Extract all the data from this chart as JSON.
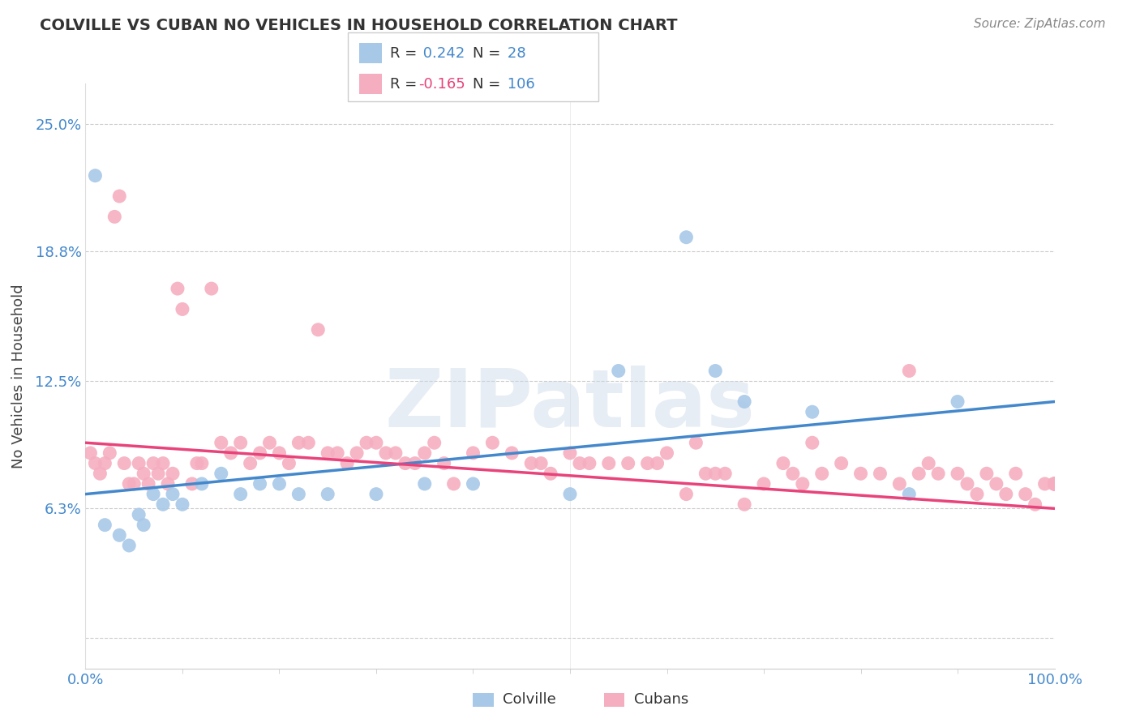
{
  "title": "COLVILLE VS CUBAN NO VEHICLES IN HOUSEHOLD CORRELATION CHART",
  "source": "Source: ZipAtlas.com",
  "ylabel": "No Vehicles in Household",
  "xlim": [
    0,
    100
  ],
  "ylim": [
    -1.5,
    27
  ],
  "ytick_positions": [
    0,
    6.3,
    12.5,
    18.8,
    25.0
  ],
  "ytick_labels": [
    "",
    "6.3%",
    "12.5%",
    "18.8%",
    "25.0%"
  ],
  "xtick_positions": [
    0,
    100
  ],
  "xtick_labels": [
    "0.0%",
    "100.0%"
  ],
  "colville_R": 0.242,
  "colville_N": 28,
  "cuban_R": -0.165,
  "cuban_N": 106,
  "colville_color": "#a8c8e8",
  "cuban_color": "#f5aec0",
  "colville_line_color": "#4488cc",
  "cuban_line_color": "#e8437a",
  "background_color": "#ffffff",
  "watermark": "ZIPatlas",
  "title_color": "#333333",
  "source_color": "#888888",
  "label_color": "#444444",
  "tick_color": "#4488cc",
  "grid_color": "#cccccc",
  "legend_edge_color": "#cccccc",
  "colville_x": [
    1.0,
    2.0,
    3.5,
    4.5,
    5.5,
    6.0,
    7.0,
    8.0,
    9.0,
    10.0,
    12.0,
    14.0,
    16.0,
    18.0,
    20.0,
    22.0,
    25.0,
    30.0,
    35.0,
    40.0,
    50.0,
    55.0,
    62.0,
    65.0,
    68.0,
    75.0,
    85.0,
    90.0
  ],
  "colville_y": [
    22.5,
    5.5,
    5.0,
    4.5,
    6.0,
    5.5,
    7.0,
    6.5,
    7.0,
    6.5,
    7.5,
    8.0,
    7.0,
    7.5,
    7.5,
    7.0,
    7.0,
    7.0,
    7.5,
    7.5,
    7.0,
    13.0,
    19.5,
    13.0,
    11.5,
    11.0,
    7.0,
    11.5
  ],
  "cuban_x": [
    0.5,
    1.0,
    1.5,
    2.0,
    2.5,
    3.0,
    3.5,
    4.0,
    4.5,
    5.0,
    5.5,
    6.0,
    6.5,
    7.0,
    7.5,
    8.0,
    8.5,
    9.0,
    9.5,
    10.0,
    11.0,
    11.5,
    12.0,
    13.0,
    14.0,
    15.0,
    16.0,
    17.0,
    18.0,
    19.0,
    20.0,
    21.0,
    22.0,
    23.0,
    24.0,
    25.0,
    26.0,
    27.0,
    28.0,
    29.0,
    30.0,
    31.0,
    32.0,
    33.0,
    34.0,
    35.0,
    36.0,
    37.0,
    38.0,
    40.0,
    42.0,
    44.0,
    46.0,
    47.0,
    48.0,
    50.0,
    51.0,
    52.0,
    54.0,
    56.0,
    58.0,
    59.0,
    60.0,
    62.0,
    63.0,
    64.0,
    65.0,
    66.0,
    68.0,
    70.0,
    72.0,
    73.0,
    74.0,
    75.0,
    76.0,
    78.0,
    80.0,
    82.0,
    84.0,
    85.0,
    86.0,
    87.0,
    88.0,
    90.0,
    91.0,
    92.0,
    93.0,
    94.0,
    95.0,
    96.0,
    97.0,
    98.0,
    99.0,
    100.0,
    100.0,
    100.0,
    100.0,
    100.0,
    100.0,
    100.0,
    100.0,
    100.0,
    100.0,
    100.0,
    100.0,
    100.0
  ],
  "cuban_y": [
    9.0,
    8.5,
    8.0,
    8.5,
    9.0,
    20.5,
    21.5,
    8.5,
    7.5,
    7.5,
    8.5,
    8.0,
    7.5,
    8.5,
    8.0,
    8.5,
    7.5,
    8.0,
    17.0,
    16.0,
    7.5,
    8.5,
    8.5,
    17.0,
    9.5,
    9.0,
    9.5,
    8.5,
    9.0,
    9.5,
    9.0,
    8.5,
    9.5,
    9.5,
    15.0,
    9.0,
    9.0,
    8.5,
    9.0,
    9.5,
    9.5,
    9.0,
    9.0,
    8.5,
    8.5,
    9.0,
    9.5,
    8.5,
    7.5,
    9.0,
    9.5,
    9.0,
    8.5,
    8.5,
    8.0,
    9.0,
    8.5,
    8.5,
    8.5,
    8.5,
    8.5,
    8.5,
    9.0,
    7.0,
    9.5,
    8.0,
    8.0,
    8.0,
    6.5,
    7.5,
    8.5,
    8.0,
    7.5,
    9.5,
    8.0,
    8.5,
    8.0,
    8.0,
    7.5,
    13.0,
    8.0,
    8.5,
    8.0,
    8.0,
    7.5,
    7.0,
    8.0,
    7.5,
    7.0,
    8.0,
    7.0,
    6.5,
    7.5,
    7.5,
    7.5,
    7.5,
    7.5,
    7.5,
    7.5,
    7.5,
    7.5,
    7.5,
    7.5,
    7.5,
    7.5,
    7.5
  ]
}
